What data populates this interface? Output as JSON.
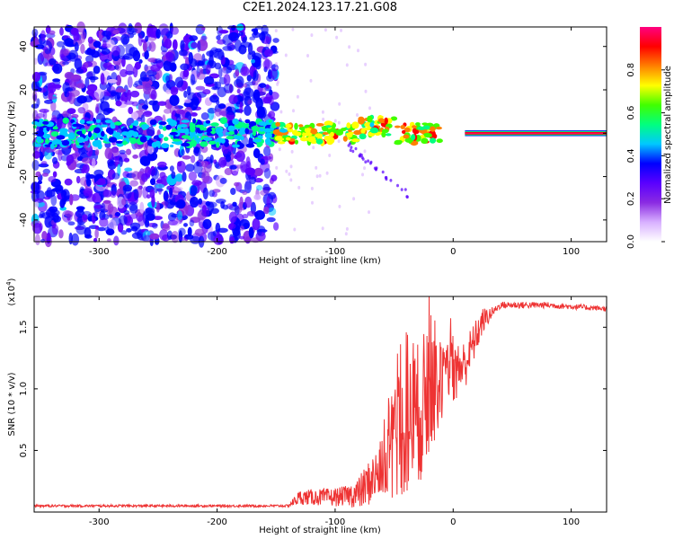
{
  "title": "C2E1.2024.123.17.21.G08",
  "chart_data": [
    {
      "type": "heatmap",
      "xlabel": "Height of straight line (km)",
      "ylabel": "Frequency (Hz)",
      "xlim": [
        -355,
        130
      ],
      "ylim": [
        -50,
        49
      ],
      "x_ticks": [
        -300,
        -200,
        -100,
        0,
        100
      ],
      "y_ticks": [
        -40,
        -20,
        0,
        20,
        40
      ],
      "colorbar": {
        "label": "Normalized spectral amplitude",
        "range": [
          0.0,
          1.0
        ],
        "ticks": [
          "0.0",
          "0.2",
          "0.4",
          "0.6",
          "0.8"
        ],
        "tick_values": [
          0.0,
          0.2,
          0.4,
          0.6,
          0.8
        ],
        "colors": [
          "#ffffff",
          "#d8b0ff",
          "#8a2be2",
          "#5a00ff",
          "#0000ff",
          "#00c8ff",
          "#00ff80",
          "#40ff00",
          "#ffff00",
          "#ff8000",
          "#ff0000",
          "#ff0080"
        ]
      },
      "description_regions": [
        {
          "x": [
            -355,
            -150
          ],
          "freq_spread": 49,
          "level": "low-medium"
        },
        {
          "x": [
            -150,
            10
          ],
          "freq_center_offset": 0,
          "level": "medium-high"
        },
        {
          "x": [
            10,
            130
          ],
          "freq": 0,
          "level": "high"
        }
      ]
    },
    {
      "type": "line",
      "xlabel": "Height of straight line (km)",
      "ylabel": "SNR (10 * v/v)",
      "y_multiplier": "(x10",
      "y_multiplier_exp": "4",
      "y_multiplier_close": ")",
      "xlim": [
        -355,
        130
      ],
      "ylim": [
        0,
        1.75
      ],
      "x_ticks": [
        -300,
        -200,
        -100,
        0,
        100
      ],
      "y_ticks": [
        0.5,
        1.0,
        1.5
      ],
      "y_tick_labels": [
        "0.5",
        "1.0",
        "1.5"
      ],
      "color": "#ee3333",
      "envelope": [
        {
          "x": -355,
          "y": 0.05
        },
        {
          "x": -140,
          "y": 0.05
        },
        {
          "x": -130,
          "y": 0.12
        },
        {
          "x": -100,
          "y": 0.12
        },
        {
          "x": -80,
          "y": 0.15
        },
        {
          "x": -60,
          "y": 0.35
        },
        {
          "x": -45,
          "y": 0.6
        },
        {
          "x": -30,
          "y": 0.8
        },
        {
          "x": -10,
          "y": 1.05
        },
        {
          "x": 10,
          "y": 1.2
        },
        {
          "x": 25,
          "y": 1.55
        },
        {
          "x": 40,
          "y": 1.68
        },
        {
          "x": 80,
          "y": 1.68
        },
        {
          "x": 130,
          "y": 1.65
        }
      ],
      "noise_amplitude": [
        {
          "x": -355,
          "a": 0.01
        },
        {
          "x": -140,
          "a": 0.01
        },
        {
          "x": -130,
          "a": 0.06
        },
        {
          "x": -90,
          "a": 0.08
        },
        {
          "x": -60,
          "a": 0.25
        },
        {
          "x": -40,
          "a": 0.55
        },
        {
          "x": -25,
          "a": 0.6
        },
        {
          "x": -10,
          "a": 0.3
        },
        {
          "x": 15,
          "a": 0.18
        },
        {
          "x": 35,
          "a": 0.03
        },
        {
          "x": 130,
          "a": 0.02
        }
      ]
    }
  ]
}
